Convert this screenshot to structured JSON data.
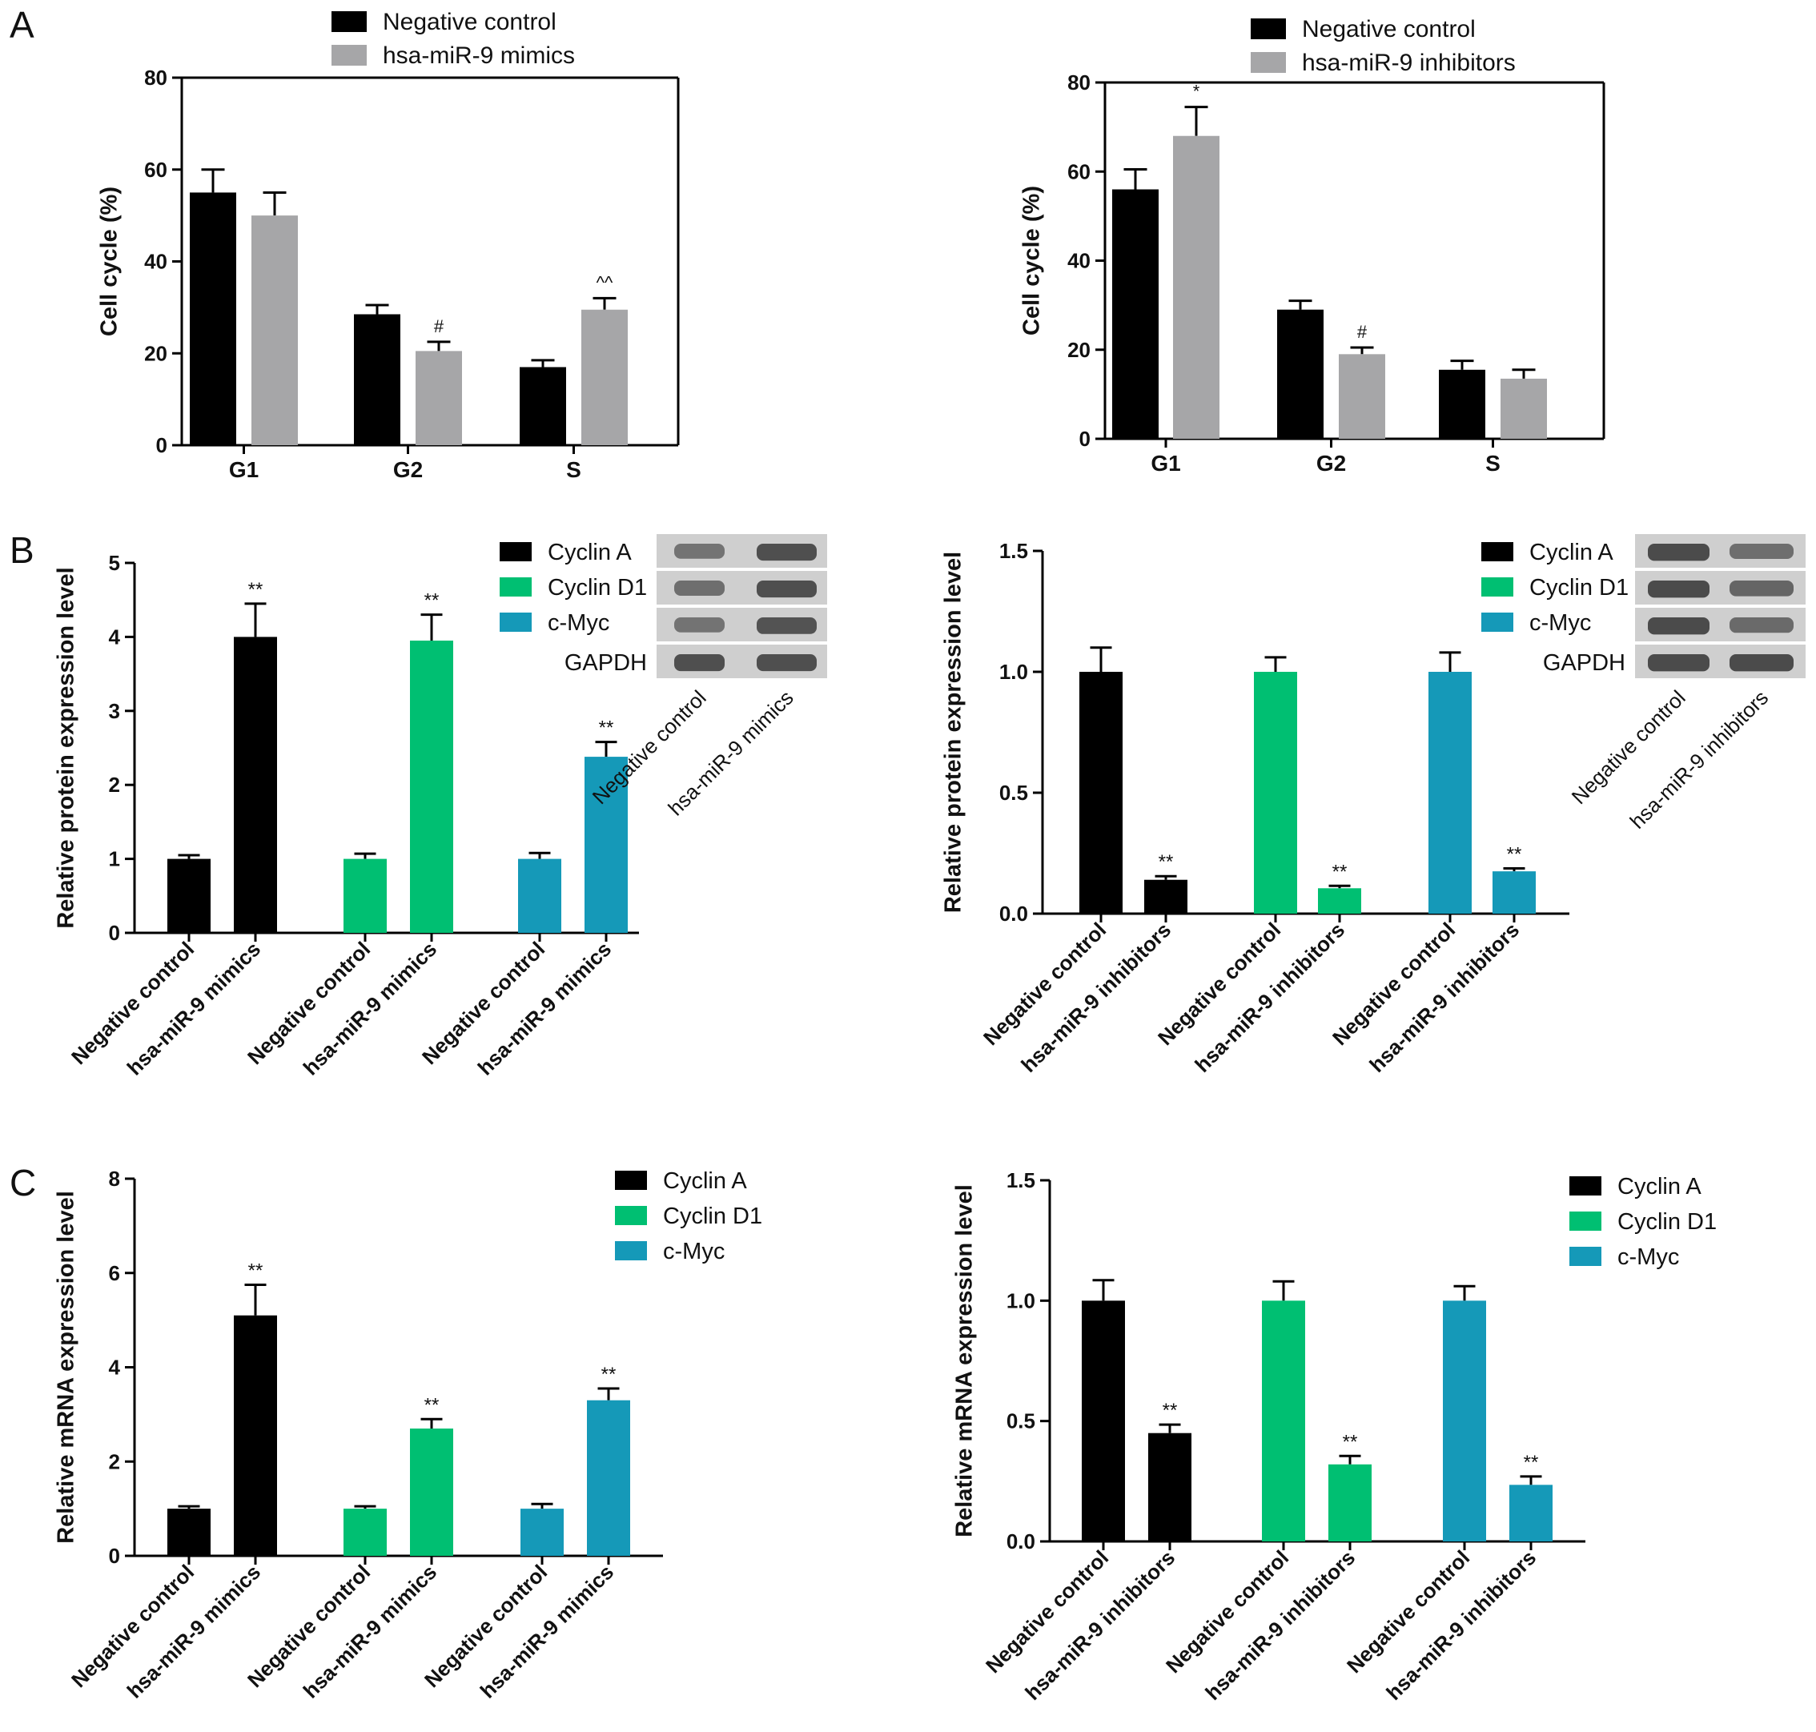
{
  "panel_labels": [
    "A",
    "B",
    "C"
  ],
  "colors": {
    "negative_control": "#000000",
    "mimics_grey": "#a6a6a8",
    "cyclin_a": "#000000",
    "cyclin_d1": "#00bf72",
    "c_myc": "#1599b8",
    "blot_band": "#3a3a3a",
    "blot_bg": "#cfcfcf"
  },
  "chart_data": [
    {
      "id": "A-left",
      "type": "bar",
      "title": "",
      "xlabel": "",
      "ylabel": "Cell cycle (%)",
      "ylim": [
        0,
        80
      ],
      "yticks": [
        "0",
        "20",
        "40",
        "60",
        "80"
      ],
      "categories": [
        "G1",
        "G2",
        "S"
      ],
      "series": [
        {
          "name": "Negative control",
          "values": [
            55,
            28.5,
            17
          ],
          "errors": [
            5,
            2,
            1.5
          ],
          "marks": [
            "",
            "",
            ""
          ]
        },
        {
          "name": "hsa-miR-9 mimics",
          "values": [
            50,
            20.5,
            29.5
          ],
          "errors": [
            5,
            2,
            2.5
          ],
          "marks": [
            "",
            "#",
            "^^"
          ]
        }
      ],
      "legend": "top"
    },
    {
      "id": "A-right",
      "type": "bar",
      "title": "",
      "xlabel": "",
      "ylabel": "Cell cycle (%)",
      "ylim": [
        0,
        80
      ],
      "yticks": [
        "0",
        "20",
        "40",
        "60",
        "80"
      ],
      "categories": [
        "G1",
        "G2",
        "S"
      ],
      "series": [
        {
          "name": "Negative control",
          "values": [
            56,
            29,
            15.5
          ],
          "errors": [
            4.5,
            2,
            2
          ],
          "marks": [
            "",
            "",
            ""
          ]
        },
        {
          "name": "hsa-miR-9 inhibitors",
          "values": [
            68,
            19,
            13.5
          ],
          "errors": [
            6.5,
            1.5,
            2
          ],
          "marks": [
            "*",
            "#",
            ""
          ]
        }
      ],
      "legend": "top"
    },
    {
      "id": "B-left",
      "type": "bar",
      "title": "",
      "xlabel": "",
      "ylabel": "Relative protein expression level",
      "ylim": [
        0,
        5
      ],
      "yticks": [
        "0",
        "1",
        "2",
        "3",
        "4",
        "5"
      ],
      "categories": [
        "Negative control",
        "hsa-miR-9 mimics",
        "Negative control",
        "hsa-miR-9 mimics",
        "Negative control",
        "hsa-miR-9 mimics"
      ],
      "values": [
        1.0,
        4.0,
        1.0,
        3.95,
        1.0,
        2.38
      ],
      "errors": [
        0.05,
        0.45,
        0.07,
        0.35,
        0.08,
        0.2
      ],
      "marks": [
        "",
        "**",
        "",
        "**",
        "",
        "**"
      ],
      "bar_colors": [
        "cyclin_a",
        "cyclin_a",
        "cyclin_d1",
        "cyclin_d1",
        "c_myc",
        "c_myc"
      ],
      "legend_entries": [
        "Cyclin A",
        "Cyclin D1",
        "c-Myc"
      ],
      "blot": {
        "rows": [
          "Cyclin A",
          "Cyclin D1",
          "c-Myc",
          "GAPDH"
        ],
        "lanes": [
          "Negative control",
          "hsa-miR-9 mimics"
        ]
      }
    },
    {
      "id": "B-right",
      "type": "bar",
      "title": "",
      "xlabel": "",
      "ylabel": "Relative protein expression level",
      "ylim": [
        0,
        1.5
      ],
      "yticks": [
        "0.0",
        "0.5",
        "1.0",
        "1.5"
      ],
      "categories": [
        "Negative control",
        "hsa-miR-9 inhibitors",
        "Negative control",
        "hsa-miR-9 inhibitors",
        "Negative control",
        "hsa-miR-9 inhibitors"
      ],
      "values": [
        1.0,
        0.14,
        1.0,
        0.105,
        1.0,
        0.175
      ],
      "errors": [
        0.1,
        0.015,
        0.06,
        0.01,
        0.08,
        0.012
      ],
      "marks": [
        "",
        "**",
        "",
        "**",
        "",
        "**"
      ],
      "bar_colors": [
        "cyclin_a",
        "cyclin_a",
        "cyclin_d1",
        "cyclin_d1",
        "c_myc",
        "c_myc"
      ],
      "legend_entries": [
        "Cyclin A",
        "Cyclin D1",
        "c-Myc"
      ],
      "blot": {
        "rows": [
          "Cyclin A",
          "Cyclin D1",
          "c-Myc",
          "GAPDH"
        ],
        "lanes": [
          "Negative control",
          "hsa-miR-9 inhibitors"
        ]
      }
    },
    {
      "id": "C-left",
      "type": "bar",
      "title": "",
      "xlabel": "",
      "ylabel": "Relative mRNA expression level",
      "ylim": [
        0,
        8
      ],
      "yticks": [
        "0",
        "2",
        "4",
        "6",
        "8"
      ],
      "categories": [
        "Negative control",
        "hsa-miR-9 mimics",
        "Negative control",
        "hsa-miR-9 mimics",
        "Negative control",
        "hsa-miR-9 mimics"
      ],
      "values": [
        1.0,
        5.1,
        1.0,
        2.7,
        1.0,
        3.3
      ],
      "errors": [
        0.05,
        0.65,
        0.05,
        0.2,
        0.1,
        0.25
      ],
      "marks": [
        "",
        "**",
        "",
        "**",
        "",
        "**"
      ],
      "bar_colors": [
        "cyclin_a",
        "cyclin_a",
        "cyclin_d1",
        "cyclin_d1",
        "c_myc",
        "c_myc"
      ],
      "legend_entries": [
        "Cyclin A",
        "Cyclin D1",
        "c-Myc"
      ]
    },
    {
      "id": "C-right",
      "type": "bar",
      "title": "",
      "xlabel": "",
      "ylabel": "Relative mRNA expression level",
      "ylim": [
        0,
        1.5
      ],
      "yticks": [
        "0.0",
        "0.5",
        "1.0",
        "1.5"
      ],
      "categories": [
        "Negative control",
        "hsa-miR-9 inhibitors",
        "Negative control",
        "hsa-miR-9 inhibitors",
        "Negative control",
        "hsa-miR-9 inhibitors"
      ],
      "values": [
        1.0,
        0.45,
        1.0,
        0.32,
        1.0,
        0.235
      ],
      "errors": [
        0.085,
        0.035,
        0.08,
        0.035,
        0.06,
        0.035
      ],
      "marks": [
        "",
        "**",
        "",
        "**",
        "",
        "**"
      ],
      "bar_colors": [
        "cyclin_a",
        "cyclin_a",
        "cyclin_d1",
        "cyclin_d1",
        "c_myc",
        "c_myc"
      ],
      "legend_entries": [
        "Cyclin A",
        "Cyclin D1",
        "c-Myc"
      ]
    }
  ]
}
